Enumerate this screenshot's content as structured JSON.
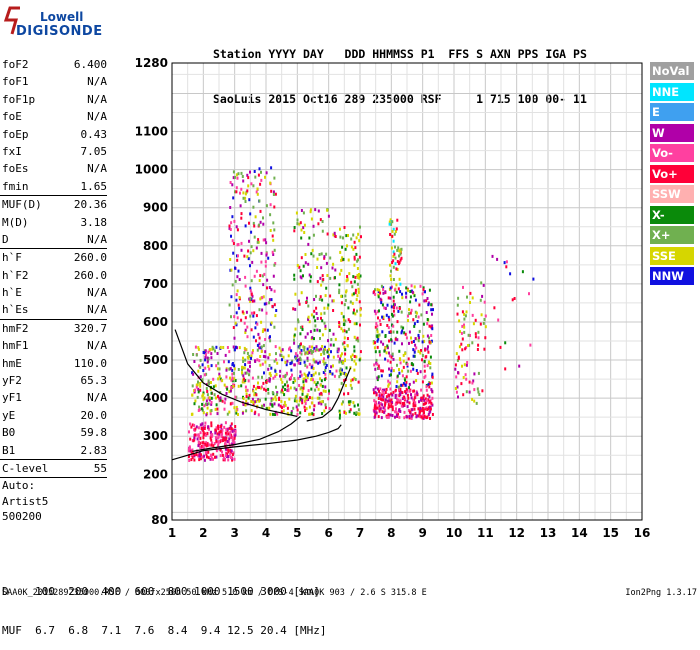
{
  "logo": {
    "line1": "Lowell",
    "line2": "DIGISONDE"
  },
  "header": {
    "line1": "Station YYYY DAY   DDD HHMMSS P1  FFS S AXN PPS IGA PS",
    "line2": "SaoLuis 2015 Oct16 289 235000 RSF     1 715 100 00- 11"
  },
  "params": {
    "group1": [
      {
        "label": "foF2",
        "value": "6.400"
      },
      {
        "label": "foF1",
        "value": "N/A"
      },
      {
        "label": "foF1p",
        "value": "N/A"
      },
      {
        "label": "foE",
        "value": "N/A"
      },
      {
        "label": "foEp",
        "value": "0.43"
      },
      {
        "label": "fxI",
        "value": "7.05"
      },
      {
        "label": "foEs",
        "value": "N/A"
      },
      {
        "label": "fmin",
        "value": "1.65"
      }
    ],
    "group2": [
      {
        "label": "MUF(D)",
        "value": "20.36"
      },
      {
        "label": "M(D)",
        "value": "3.18"
      },
      {
        "label": "D",
        "value": "N/A"
      }
    ],
    "group3": [
      {
        "label": "h`F",
        "value": "260.0"
      },
      {
        "label": "h`F2",
        "value": "260.0"
      },
      {
        "label": "h`E",
        "value": "N/A"
      },
      {
        "label": "h`Es",
        "value": "N/A"
      }
    ],
    "group4": [
      {
        "label": "hmF2",
        "value": "320.7"
      },
      {
        "label": "hmF1",
        "value": "N/A"
      },
      {
        "label": "hmE",
        "value": "110.0"
      },
      {
        "label": "yF2",
        "value": "65.3"
      },
      {
        "label": "yF1",
        "value": "N/A"
      },
      {
        "label": "yE",
        "value": "20.0"
      },
      {
        "label": "B0",
        "value": "59.8"
      },
      {
        "label": "B1",
        "value": "2.83"
      }
    ],
    "clevel": {
      "label": "C-level",
      "value": "55"
    },
    "auto": [
      "Auto:",
      "Artist5",
      "500200"
    ]
  },
  "legend": [
    {
      "label": "NoVal",
      "color": "#a0a0a0"
    },
    {
      "label": "NNE",
      "color": "#00e5ff"
    },
    {
      "label": "E",
      "color": "#3fa0f0"
    },
    {
      "label": "W",
      "color": "#b000a8"
    },
    {
      "label": "Vo-",
      "color": "#ff40a0"
    },
    {
      "label": "Vo+",
      "color": "#ff0038"
    },
    {
      "label": "SSW",
      "color": "#ffb0b0"
    },
    {
      "label": "X-",
      "color": "#0a8a0a"
    },
    {
      "label": "X+",
      "color": "#70b050"
    },
    {
      "label": "SSE",
      "color": "#d6d600"
    },
    {
      "label": "NNW",
      "color": "#1010e0"
    }
  ],
  "chart_data": {
    "type": "scatter",
    "title": "",
    "xlabel": "",
    "ylabel": "",
    "x_unit": "MHz",
    "y_unit": "km",
    "xlim": [
      1,
      16
    ],
    "ylim": [
      80,
      1280
    ],
    "x_ticks": [
      "1",
      "2",
      "3",
      "4",
      "5",
      "6",
      "7",
      "8",
      "9",
      "10",
      "11",
      "12",
      "13",
      "14",
      "15",
      "16"
    ],
    "y_ticks": [
      "1280",
      "1100",
      "1000",
      "900",
      "800",
      "700",
      "600",
      "500",
      "400",
      "300",
      "200",
      "80"
    ],
    "grid": true,
    "legend_position": "right",
    "trace_profile": [
      {
        "f": 1.0,
        "h": 238
      },
      {
        "f": 2.0,
        "h": 262
      },
      {
        "f": 3.0,
        "h": 272
      },
      {
        "f": 4.0,
        "h": 280
      },
      {
        "f": 5.0,
        "h": 290
      },
      {
        "f": 5.6,
        "h": 300
      },
      {
        "f": 6.0,
        "h": 310
      },
      {
        "f": 6.3,
        "h": 320
      },
      {
        "f": 6.4,
        "h": 330
      }
    ],
    "trace_x": [
      {
        "f": 1.65,
        "h": 260
      },
      {
        "f": 2.2,
        "h": 268
      },
      {
        "f": 3.0,
        "h": 278
      },
      {
        "f": 3.8,
        "h": 292
      },
      {
        "f": 4.4,
        "h": 312
      },
      {
        "f": 4.8,
        "h": 332
      },
      {
        "f": 5.1,
        "h": 352
      }
    ],
    "trace_es": [
      {
        "f": 1.1,
        "h": 580
      },
      {
        "f": 1.5,
        "h": 490
      },
      {
        "f": 2.0,
        "h": 440
      },
      {
        "f": 2.6,
        "h": 410
      },
      {
        "f": 3.2,
        "h": 390
      },
      {
        "f": 4.0,
        "h": 370
      },
      {
        "f": 5.0,
        "h": 352
      }
    ],
    "trace_tail": [
      {
        "f": 5.3,
        "h": 340
      },
      {
        "f": 5.8,
        "h": 350
      },
      {
        "f": 6.1,
        "h": 370
      },
      {
        "f": 6.3,
        "h": 400
      },
      {
        "f": 6.5,
        "h": 440
      },
      {
        "f": 6.7,
        "h": 480
      }
    ],
    "echo_clusters": [
      {
        "f0": 1.5,
        "f1": 3.0,
        "h0": 240,
        "h1": 340,
        "n": 260,
        "colors": [
          "#ff0038",
          "#ff40a0",
          "#ff40a0",
          "#b000a8",
          "#ff0038"
        ]
      },
      {
        "f0": 1.6,
        "f1": 6.0,
        "h0": 360,
        "h1": 460,
        "n": 360,
        "colors": [
          "#d6d600",
          "#d6d600",
          "#70b050",
          "#0a8a0a",
          "#ff0038",
          "#ff40a0",
          "#b000a8"
        ]
      },
      {
        "f0": 1.6,
        "f1": 6.5,
        "h0": 460,
        "h1": 540,
        "n": 280,
        "colors": [
          "#d6d600",
          "#b000a8",
          "#1010e0",
          "#ff40a0",
          "#70b050"
        ]
      },
      {
        "f0": 2.8,
        "f1": 4.3,
        "h0": 540,
        "h1": 1010,
        "n": 240,
        "colors": [
          "#b000a8",
          "#1010e0",
          "#d6d600",
          "#70b050",
          "#ff0038",
          "#ff40a0"
        ]
      },
      {
        "f0": 4.8,
        "f1": 6.2,
        "h0": 520,
        "h1": 900,
        "n": 160,
        "colors": [
          "#d6d600",
          "#70b050",
          "#0a8a0a",
          "#ff0038",
          "#b000a8"
        ]
      },
      {
        "f0": 6.3,
        "f1": 7.0,
        "h0": 350,
        "h1": 860,
        "n": 180,
        "colors": [
          "#d6d600",
          "#70b050",
          "#0a8a0a",
          "#d6d600",
          "#ff0038"
        ]
      },
      {
        "f0": 7.4,
        "f1": 9.3,
        "h0": 350,
        "h1": 430,
        "n": 260,
        "colors": [
          "#ff0038",
          "#ff40a0",
          "#b000a8",
          "#ff0038"
        ]
      },
      {
        "f0": 7.4,
        "f1": 9.3,
        "h0": 430,
        "h1": 700,
        "n": 330,
        "colors": [
          "#ff40a0",
          "#ff0038",
          "#d6d600",
          "#70b050",
          "#b000a8",
          "#0a8a0a",
          "#1010e0"
        ]
      },
      {
        "f0": 7.9,
        "f1": 8.3,
        "h0": 700,
        "h1": 880,
        "n": 50,
        "colors": [
          "#d6d600",
          "#70b050",
          "#00e5ff",
          "#ff0038"
        ]
      },
      {
        "f0": 10.0,
        "f1": 11.0,
        "h0": 390,
        "h1": 710,
        "n": 90,
        "colors": [
          "#d6d600",
          "#ff0038",
          "#b000a8",
          "#70b050",
          "#ff40a0"
        ]
      },
      {
        "f0": 11.0,
        "f1": 12.6,
        "h0": 470,
        "h1": 800,
        "n": 18,
        "colors": [
          "#ff0038",
          "#0a8a0a",
          "#b000a8",
          "#1010e0",
          "#ff40a0"
        ]
      }
    ]
  },
  "dmuf": {
    "d_label": "D",
    "d_values": "100  200  400  600  800 1000 1500 3000 [km]",
    "muf_label": "MUF",
    "muf_values": "6.7  6.8  7.1  7.6  8.4  9.4 12.5 20.4 [MHz]"
  },
  "footer": {
    "text": "SAA0K_2015289235000.RSF / 300fx256h 50 kHz 5.0 km / DPS-4 SAA0K 903 / 2.6 S 315.8 E",
    "version": "Ion2Png 1.3.17"
  }
}
